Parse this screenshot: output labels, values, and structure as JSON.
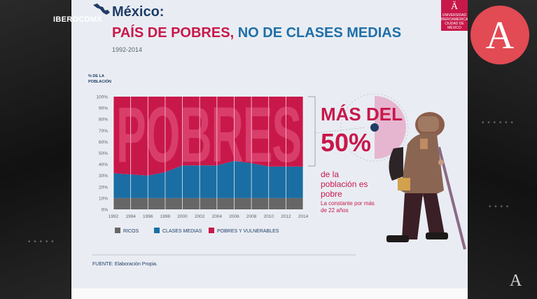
{
  "broadcast": {
    "channel": "IBEROCDMX",
    "brand_letter": "A",
    "watermark_letter": "A"
  },
  "slide": {
    "title_line1": "México:",
    "title_part1": "PAÍS DE POBRES",
    "title_comma": ",",
    "title_part2": "NO DE CLASES MEDIAS",
    "years": "1992-2014",
    "university_logo_text": [
      "UNIVERSIDAD",
      "IBEROAMERICANA",
      "CIUDAD DE MÉXICO"
    ],
    "overlay_word": "POBRES",
    "stat_line1": "MÁS DEL",
    "stat_line2": "50%",
    "stat_line3": "de la población es pobre",
    "stat_line4": "La constante por más de 22 años",
    "source": "FUENTE: Elaboración Propia."
  },
  "colors": {
    "ricos": "#666666",
    "clases_medias": "#1a6ea3",
    "pobres": "#c8184a",
    "title_blue": "#1f3c66",
    "accent_red": "#c8184a"
  },
  "chart_data": {
    "type": "area",
    "stacked": true,
    "ylabel": "% DE LA POBLACIÓN",
    "yticks": [
      "0%",
      "10%",
      "20%",
      "30%",
      "40%",
      "50%",
      "60%",
      "70%",
      "80%",
      "90%",
      "100%"
    ],
    "ylim": [
      0,
      100
    ],
    "x": [
      1992,
      1994,
      1996,
      1998,
      2000,
      2002,
      2004,
      2006,
      2008,
      2010,
      2012,
      2014
    ],
    "xlim": [
      1992,
      2014
    ],
    "grid": "vertical",
    "legend_position": "bottom",
    "series": [
      {
        "name": "RICOS",
        "values": [
          10,
          10,
          10,
          10,
          10,
          10,
          10,
          10,
          10,
          10,
          10,
          10
        ]
      },
      {
        "name": "CLASES MEDIAS",
        "values": [
          22,
          21,
          20,
          23,
          29,
          29,
          29,
          33,
          31,
          28,
          28,
          28
        ]
      },
      {
        "name": "POBRES Y VULNERABLES",
        "values": [
          68,
          69,
          70,
          67,
          61,
          61,
          61,
          57,
          59,
          62,
          62,
          62
        ]
      }
    ]
  }
}
